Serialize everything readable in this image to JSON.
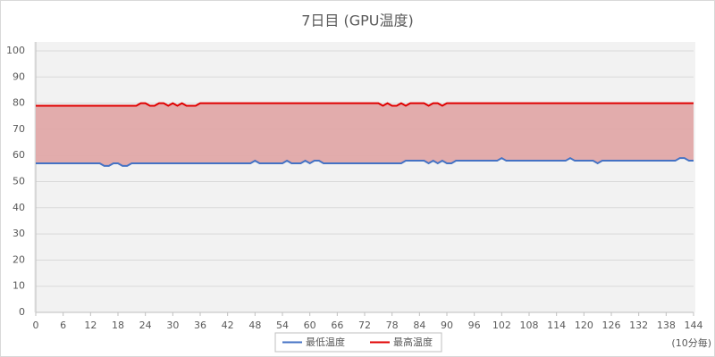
{
  "chart_data": {
    "type": "line",
    "title": "7日目 (GPU温度)",
    "x_unit_note": "(10分毎)",
    "x": [
      0,
      1,
      2,
      3,
      4,
      5,
      6,
      7,
      8,
      9,
      10,
      11,
      12,
      13,
      14,
      15,
      16,
      17,
      18,
      19,
      20,
      21,
      22,
      23,
      24,
      25,
      26,
      27,
      28,
      29,
      30,
      31,
      32,
      33,
      34,
      35,
      36,
      37,
      38,
      39,
      40,
      41,
      42,
      43,
      44,
      45,
      46,
      47,
      48,
      49,
      50,
      51,
      52,
      53,
      54,
      55,
      56,
      57,
      58,
      59,
      60,
      61,
      62,
      63,
      64,
      65,
      66,
      67,
      68,
      69,
      70,
      71,
      72,
      73,
      74,
      75,
      76,
      77,
      78,
      79,
      80,
      81,
      82,
      83,
      84,
      85,
      86,
      87,
      88,
      89,
      90,
      91,
      92,
      93,
      94,
      95,
      96,
      97,
      98,
      99,
      100,
      101,
      102,
      103,
      104,
      105,
      106,
      107,
      108,
      109,
      110,
      111,
      112,
      113,
      114,
      115,
      116,
      117,
      118,
      119,
      120,
      121,
      122,
      123,
      124,
      125,
      126,
      127,
      128,
      129,
      130,
      131,
      132,
      133,
      134,
      135,
      136,
      137,
      138,
      139,
      140,
      141,
      142,
      143,
      144
    ],
    "series": [
      {
        "name": "最低温度",
        "color": "#4472c4",
        "values": [
          57,
          57,
          57,
          57,
          57,
          57,
          57,
          57,
          57,
          57,
          57,
          57,
          57,
          57,
          57,
          56,
          56,
          57,
          57,
          56,
          56,
          57,
          57,
          57,
          57,
          57,
          57,
          57,
          57,
          57,
          57,
          57,
          57,
          57,
          57,
          57,
          57,
          57,
          57,
          57,
          57,
          57,
          57,
          57,
          57,
          57,
          57,
          57,
          58,
          57,
          57,
          57,
          57,
          57,
          57,
          58,
          57,
          57,
          57,
          58,
          57,
          58,
          58,
          57,
          57,
          57,
          57,
          57,
          57,
          57,
          57,
          57,
          57,
          57,
          57,
          57,
          57,
          57,
          57,
          57,
          57,
          58,
          58,
          58,
          58,
          58,
          57,
          58,
          57,
          58,
          57,
          57,
          58,
          58,
          58,
          58,
          58,
          58,
          58,
          58,
          58,
          58,
          59,
          58,
          58,
          58,
          58,
          58,
          58,
          58,
          58,
          58,
          58,
          58,
          58,
          58,
          58,
          59,
          58,
          58,
          58,
          58,
          58,
          57,
          58,
          58,
          58,
          58,
          58,
          58,
          58,
          58,
          58,
          58,
          58,
          58,
          58,
          58,
          58,
          58,
          58,
          59,
          59,
          58,
          58
        ]
      },
      {
        "name": "最高温度",
        "color": "#e00000",
        "values": [
          79,
          79,
          79,
          79,
          79,
          79,
          79,
          79,
          79,
          79,
          79,
          79,
          79,
          79,
          79,
          79,
          79,
          79,
          79,
          79,
          79,
          79,
          79,
          80,
          80,
          79,
          79,
          80,
          80,
          79,
          80,
          79,
          80,
          79,
          79,
          79,
          80,
          80,
          80,
          80,
          80,
          80,
          80,
          80,
          80,
          80,
          80,
          80,
          80,
          80,
          80,
          80,
          80,
          80,
          80,
          80,
          80,
          80,
          80,
          80,
          80,
          80,
          80,
          80,
          80,
          80,
          80,
          80,
          80,
          80,
          80,
          80,
          80,
          80,
          80,
          80,
          79,
          80,
          79,
          79,
          80,
          79,
          80,
          80,
          80,
          80,
          79,
          80,
          80,
          79,
          80,
          80,
          80,
          80,
          80,
          80,
          80,
          80,
          80,
          80,
          80,
          80,
          80,
          80,
          80,
          80,
          80,
          80,
          80,
          80,
          80,
          80,
          80,
          80,
          80,
          80,
          80,
          80,
          80,
          80,
          80,
          80,
          80,
          80,
          80,
          80,
          80,
          80,
          80,
          80,
          80,
          80,
          80,
          80,
          80,
          80,
          80,
          80,
          80,
          80,
          80,
          80,
          80,
          80,
          80
        ]
      }
    ],
    "fill_between_color": "#e0a4a4",
    "xlim": [
      0,
      144
    ],
    "xticks": [
      0,
      6,
      12,
      18,
      24,
      30,
      36,
      42,
      48,
      54,
      60,
      66,
      72,
      78,
      84,
      90,
      96,
      102,
      108,
      114,
      120,
      126,
      132,
      138,
      144
    ],
    "ylim": [
      0,
      100
    ],
    "yticks": [
      0,
      10,
      20,
      30,
      40,
      50,
      60,
      70,
      80,
      90,
      100
    ],
    "grid": true,
    "legend": "bottom"
  }
}
